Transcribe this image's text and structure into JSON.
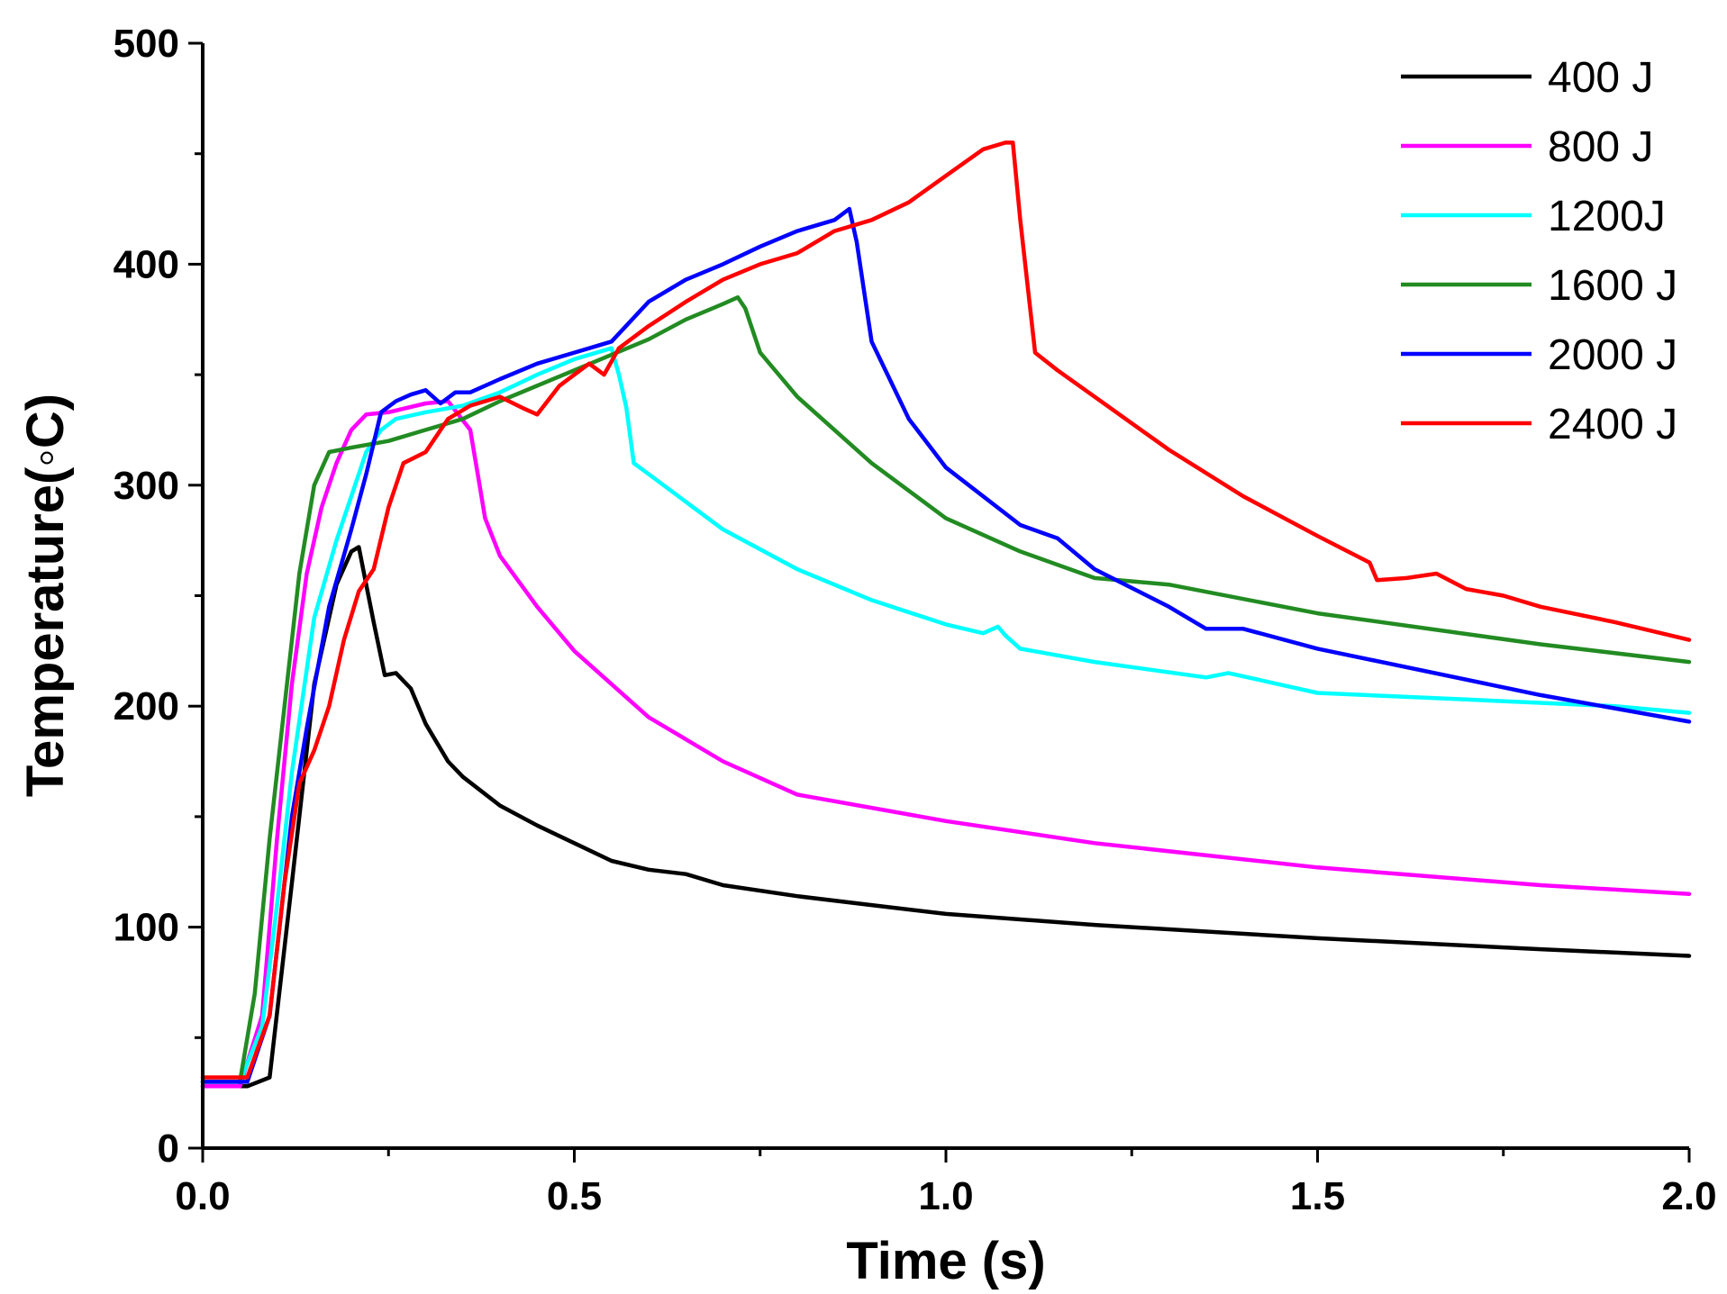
{
  "chart_data": {
    "type": "line",
    "title": "",
    "xlabel": "Time (s)",
    "ylabel": "Temperature(◦C)",
    "xlim": [
      0,
      2.0
    ],
    "ylim": [
      0,
      500
    ],
    "xticks": [
      0.0,
      0.5,
      1.0,
      1.5,
      2.0
    ],
    "xtick_labels": [
      "0.0",
      "0.5",
      "1.0",
      "1.5",
      "2.0"
    ],
    "yticks": [
      0,
      100,
      200,
      300,
      400,
      500
    ],
    "ytick_labels": [
      "0",
      "100",
      "200",
      "300",
      "400",
      "500"
    ],
    "grid": false,
    "legend_position": "top-right",
    "series": [
      {
        "name": "400 J",
        "color": "#000000",
        "x": [
          0,
          0.06,
          0.09,
          0.12,
          0.15,
          0.18,
          0.2,
          0.21,
          0.22,
          0.23,
          0.245,
          0.26,
          0.28,
          0.3,
          0.33,
          0.35,
          0.4,
          0.45,
          0.5,
          0.55,
          0.6,
          0.65,
          0.7,
          0.8,
          0.9,
          1.0,
          1.2,
          1.5,
          1.8,
          2.0
        ],
        "y": [
          28,
          28,
          32,
          120,
          210,
          255,
          270,
          272,
          255,
          238,
          214,
          215,
          208,
          192,
          175,
          168,
          155,
          146,
          138,
          130,
          126,
          124,
          119,
          114,
          110,
          106,
          101,
          95,
          90,
          87
        ]
      },
      {
        "name": "800 J",
        "color": "#ff00ff",
        "x": [
          0,
          0.05,
          0.08,
          0.1,
          0.12,
          0.14,
          0.16,
          0.18,
          0.2,
          0.22,
          0.25,
          0.3,
          0.33,
          0.36,
          0.37,
          0.38,
          0.4,
          0.45,
          0.5,
          0.6,
          0.7,
          0.8,
          1.0,
          1.2,
          1.5,
          1.8,
          2.0
        ],
        "y": [
          28,
          28,
          60,
          140,
          210,
          260,
          290,
          310,
          325,
          332,
          333,
          337,
          338,
          325,
          305,
          285,
          268,
          245,
          225,
          195,
          175,
          160,
          148,
          138,
          127,
          119,
          115
        ]
      },
      {
        "name": "1200J",
        "color": "#00ffff",
        "x": [
          0,
          0.05,
          0.08,
          0.1,
          0.12,
          0.15,
          0.18,
          0.2,
          0.22,
          0.24,
          0.26,
          0.3,
          0.35,
          0.4,
          0.45,
          0.5,
          0.55,
          0.56,
          0.57,
          0.58,
          0.6,
          0.7,
          0.8,
          0.9,
          1.0,
          1.05,
          1.07,
          1.08,
          1.1,
          1.2,
          1.35,
          1.38,
          1.5,
          1.7,
          1.9,
          2.0
        ],
        "y": [
          30,
          30,
          55,
          110,
          170,
          240,
          275,
          295,
          315,
          325,
          330,
          333,
          336,
          342,
          350,
          357,
          362,
          350,
          335,
          310,
          305,
          280,
          262,
          248,
          237,
          233,
          236,
          232,
          226,
          220,
          213,
          215,
          206,
          203,
          200,
          197
        ]
      },
      {
        "name": "1600 J",
        "color": "#228b22",
        "x": [
          0,
          0.05,
          0.07,
          0.09,
          0.11,
          0.13,
          0.15,
          0.17,
          0.2,
          0.25,
          0.3,
          0.35,
          0.4,
          0.5,
          0.6,
          0.65,
          0.7,
          0.72,
          0.73,
          0.75,
          0.8,
          0.9,
          1.0,
          1.1,
          1.2,
          1.3,
          1.5,
          1.8,
          2.0
        ],
        "y": [
          30,
          30,
          70,
          140,
          200,
          260,
          300,
          315,
          317,
          320,
          325,
          330,
          338,
          352,
          366,
          375,
          382,
          385,
          380,
          360,
          340,
          310,
          285,
          270,
          258,
          255,
          242,
          228,
          220
        ]
      },
      {
        "name": "2000 J",
        "color": "#0000ff",
        "x": [
          0,
          0.06,
          0.09,
          0.12,
          0.14,
          0.17,
          0.2,
          0.22,
          0.24,
          0.26,
          0.28,
          0.3,
          0.32,
          0.34,
          0.36,
          0.4,
          0.45,
          0.5,
          0.55,
          0.6,
          0.65,
          0.7,
          0.75,
          0.8,
          0.85,
          0.87,
          0.88,
          0.9,
          0.95,
          1.0,
          1.1,
          1.15,
          1.2,
          1.3,
          1.35,
          1.4,
          1.5,
          1.8,
          2.0
        ],
        "y": [
          30,
          30,
          60,
          150,
          190,
          245,
          280,
          305,
          333,
          338,
          341,
          343,
          337,
          342,
          342,
          348,
          355,
          360,
          365,
          383,
          393,
          400,
          408,
          415,
          420,
          425,
          410,
          365,
          330,
          308,
          282,
          276,
          262,
          245,
          235,
          235,
          226,
          205,
          193
        ]
      },
      {
        "name": "2400 J",
        "color": "#ff0000",
        "x": [
          0,
          0.06,
          0.09,
          0.11,
          0.13,
          0.15,
          0.17,
          0.19,
          0.21,
          0.23,
          0.25,
          0.27,
          0.3,
          0.33,
          0.36,
          0.4,
          0.43,
          0.45,
          0.48,
          0.52,
          0.54,
          0.56,
          0.6,
          0.65,
          0.7,
          0.75,
          0.8,
          0.85,
          0.9,
          0.95,
          1.0,
          1.05,
          1.08,
          1.09,
          1.1,
          1.12,
          1.15,
          1.2,
          1.3,
          1.4,
          1.5,
          1.57,
          1.58,
          1.62,
          1.66,
          1.7,
          1.75,
          1.8,
          1.9,
          2.0
        ],
        "y": [
          32,
          32,
          60,
          120,
          165,
          180,
          200,
          230,
          252,
          262,
          290,
          310,
          315,
          330,
          336,
          340,
          335,
          332,
          345,
          355,
          350,
          362,
          372,
          383,
          393,
          400,
          405,
          415,
          420,
          428,
          440,
          452,
          455,
          455,
          420,
          360,
          352,
          340,
          316,
          295,
          277,
          265,
          257,
          258,
          260,
          253,
          250,
          245,
          238,
          230
        ]
      }
    ]
  }
}
